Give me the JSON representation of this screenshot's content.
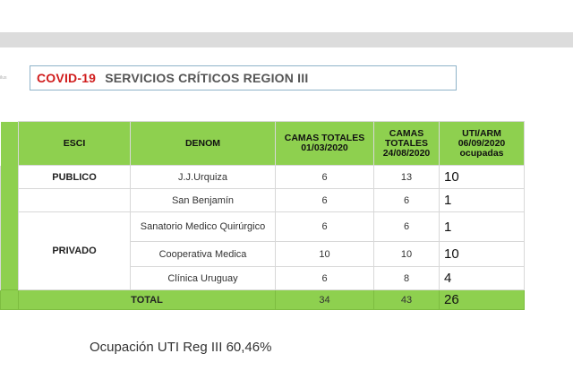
{
  "header": {
    "title_red": "COVID-19",
    "title_rest": "SERVICIOS CRÍTICOS REGION III",
    "side_note": "ilus"
  },
  "table": {
    "columns": [
      "ESCI",
      "DENOM",
      "CAMAS TOTALES 01/03/2020",
      "CAMAS TOTALES 24/08/2020",
      "UTI/ARM 06/09/2020 ocupadas"
    ],
    "groups": {
      "publico": "PUBLICO",
      "privado": "PRIVADO"
    },
    "rows": [
      {
        "denom": "J.J.Urquiza",
        "camas_0103": "6",
        "camas_2408": "13",
        "uti": "10"
      },
      {
        "denom": "San Benjamín",
        "camas_0103": "6",
        "camas_2408": "6",
        "uti": "1"
      },
      {
        "denom": "Sanatorio Medico Quirúrgico",
        "camas_0103": "6",
        "camas_2408": "6",
        "uti": "1"
      },
      {
        "denom": "Cooperativa Medica",
        "camas_0103": "10",
        "camas_2408": "10",
        "uti": "10"
      },
      {
        "denom": "Clínica Uruguay",
        "camas_0103": "6",
        "camas_2408": "8",
        "uti": "4"
      }
    ],
    "total": {
      "label": "TOTAL",
      "camas_0103": "34",
      "camas_2408": "43",
      "uti": "26"
    }
  },
  "footer": {
    "occupancy": "Ocupación UTI Reg III 60,46%"
  },
  "colors": {
    "accent_green": "#8ed04f",
    "title_red": "#d01c1c"
  }
}
